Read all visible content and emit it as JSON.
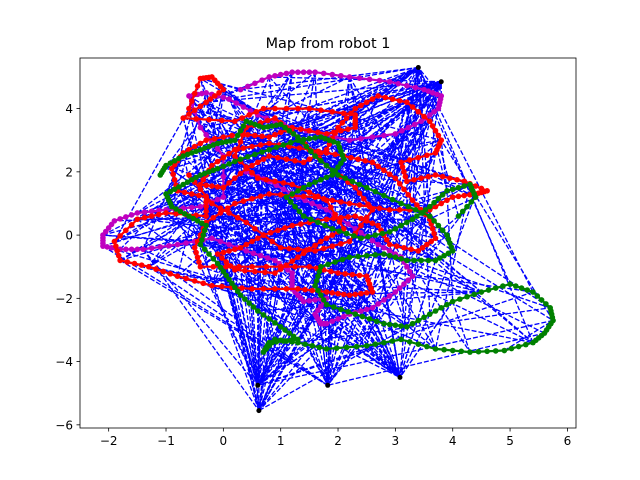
{
  "chart_data": {
    "type": "scatter",
    "title": "Map from robot 1",
    "xlabel": "",
    "ylabel": "",
    "xlim": [
      -2.5,
      6.15
    ],
    "ylim": [
      -6.1,
      5.6
    ],
    "xticks": [
      -2,
      -1,
      0,
      1,
      2,
      3,
      4,
      5,
      6
    ],
    "yticks": [
      -6,
      -4,
      -2,
      0,
      2,
      4
    ],
    "grid": false,
    "legend": "none",
    "colors": {
      "links": "#0000ff",
      "robot_red": "#ff0000",
      "robot_magenta": "#bf00bf",
      "robot_green": "#008000",
      "landmarks": "#000000"
    },
    "landmarks": [
      {
        "x": 3.4,
        "y": 5.3
      },
      {
        "x": 3.8,
        "y": 4.85
      },
      {
        "x": 0.6,
        "y": -4.75
      },
      {
        "x": 0.62,
        "y": -5.55
      },
      {
        "x": 1.82,
        "y": -4.75
      },
      {
        "x": 3.08,
        "y": -4.5
      }
    ],
    "series": [
      {
        "color": "red",
        "points": [
          [
            -0.6,
            4.0
          ],
          [
            -0.4,
            4.95
          ],
          [
            -0.2,
            5.0
          ],
          [
            0.0,
            4.6
          ],
          [
            -0.3,
            4.2
          ],
          [
            -0.7,
            3.7
          ],
          [
            0.2,
            3.6
          ],
          [
            0.7,
            4.0
          ],
          [
            1.5,
            4.0
          ],
          [
            2.3,
            3.8
          ],
          [
            2.3,
            3.4
          ],
          [
            1.8,
            3.2
          ],
          [
            1.2,
            3.4
          ],
          [
            0.8,
            3.1
          ],
          [
            0.3,
            3.2
          ],
          [
            -0.3,
            3.0
          ],
          [
            -0.7,
            2.6
          ],
          [
            -0.9,
            2.1
          ],
          [
            -0.8,
            1.4
          ],
          [
            -0.3,
            1.2
          ],
          [
            -0.3,
            0.6
          ],
          [
            -1.0,
            0.7
          ],
          [
            -1.5,
            0.5
          ],
          [
            -1.9,
            -0.2
          ],
          [
            -1.8,
            -0.8
          ],
          [
            -1.3,
            -1.0
          ],
          [
            -0.8,
            -1.3
          ],
          [
            -0.2,
            -1.6
          ],
          [
            0.5,
            -1.7
          ],
          [
            1.3,
            -1.7
          ],
          [
            1.8,
            -1.8
          ],
          [
            2.2,
            -1.9
          ],
          [
            2.6,
            -1.8
          ],
          [
            2.5,
            -1.3
          ],
          [
            2.0,
            -1.2
          ],
          [
            1.5,
            -1.0
          ],
          [
            0.5,
            -1.0
          ],
          [
            -0.4,
            -1.0
          ],
          [
            -0.5,
            -0.4
          ],
          [
            -0.3,
            0.4
          ],
          [
            0.2,
            1.0
          ],
          [
            0.8,
            1.3
          ],
          [
            1.6,
            1.2
          ],
          [
            2.2,
            1.0
          ],
          [
            2.9,
            0.8
          ],
          [
            3.6,
            0.8
          ],
          [
            4.0,
            1.2
          ],
          [
            4.4,
            1.3
          ],
          [
            4.6,
            1.4
          ],
          [
            4.2,
            1.7
          ],
          [
            3.7,
            1.9
          ],
          [
            3.2,
            1.7
          ],
          [
            3.1,
            2.3
          ],
          [
            3.7,
            2.6
          ],
          [
            3.8,
            3.0
          ],
          [
            3.6,
            3.6
          ],
          [
            3.2,
            4.2
          ],
          [
            2.7,
            4.4
          ],
          [
            2.3,
            4.0
          ],
          [
            2.0,
            3.4
          ],
          [
            1.8,
            2.7
          ],
          [
            1.4,
            2.3
          ],
          [
            0.8,
            2.5
          ],
          [
            0.4,
            2.1
          ],
          [
            0.0,
            1.5
          ],
          [
            -0.4,
            1.6
          ],
          [
            -0.2,
            2.2
          ],
          [
            0.2,
            2.7
          ],
          [
            0.8,
            2.9
          ],
          [
            1.5,
            2.7
          ],
          [
            2.1,
            2.5
          ],
          [
            2.6,
            2.3
          ],
          [
            3.0,
            1.8
          ],
          [
            3.3,
            1.1
          ],
          [
            3.6,
            0.5
          ],
          [
            3.7,
            -0.1
          ],
          [
            3.4,
            -0.5
          ],
          [
            2.9,
            -0.3
          ],
          [
            2.7,
            0.3
          ],
          [
            2.3,
            0.6
          ],
          [
            1.8,
            0.5
          ],
          [
            1.2,
            0.3
          ],
          [
            0.7,
            0.0
          ],
          [
            0.3,
            -0.4
          ],
          [
            -0.1,
            -0.6
          ],
          [
            0.2,
            -1.1
          ],
          [
            0.9,
            -1.2
          ],
          [
            1.3,
            -0.7
          ],
          [
            1.7,
            -0.2
          ],
          [
            2.1,
            0.2
          ],
          [
            1.8,
            1.1
          ],
          [
            1.2,
            1.6
          ],
          [
            0.6,
            1.8
          ],
          [
            0.2,
            2.5
          ],
          [
            0.4,
            3.4
          ],
          [
            0.9,
            3.7
          ],
          [
            1.3,
            3.1
          ],
          [
            1.8,
            2.2
          ],
          [
            2.3,
            1.5
          ],
          [
            2.6,
            0.8
          ],
          [
            2.2,
            -0.2
          ],
          [
            1.6,
            -0.5
          ],
          [
            1.0,
            -0.4
          ],
          [
            0.4,
            0.4
          ],
          [
            -0.2,
            1.0
          ],
          [
            -0.6,
            1.9
          ]
        ]
      },
      {
        "color": "magenta",
        "points": [
          [
            0.3,
            4.6
          ],
          [
            0.8,
            5.0
          ],
          [
            1.2,
            5.15
          ],
          [
            1.6,
            5.15
          ],
          [
            2.2,
            5.0
          ],
          [
            2.9,
            4.85
          ],
          [
            3.5,
            4.6
          ],
          [
            3.8,
            4.4
          ],
          [
            3.75,
            4.0
          ],
          [
            3.45,
            3.6
          ],
          [
            3.0,
            3.2
          ],
          [
            2.2,
            3.0
          ],
          [
            1.2,
            3.4
          ],
          [
            0.6,
            3.8
          ],
          [
            0.1,
            4.3
          ],
          [
            -0.3,
            4.5
          ],
          [
            -0.6,
            4.4
          ],
          [
            -0.4,
            3.4
          ],
          [
            0.0,
            2.5
          ],
          [
            0.0,
            1.2
          ],
          [
            -0.4,
            0.9
          ],
          [
            -1.0,
            0.8
          ],
          [
            -1.5,
            0.7
          ],
          [
            -1.9,
            0.45
          ],
          [
            -2.1,
            0.0
          ],
          [
            -2.1,
            -0.35
          ],
          [
            -1.8,
            -0.45
          ],
          [
            -1.4,
            -0.45
          ],
          [
            -0.8,
            -0.3
          ],
          [
            -0.2,
            -0.1
          ],
          [
            0.4,
            -0.5
          ],
          [
            0.9,
            -0.8
          ],
          [
            1.2,
            -1.2
          ],
          [
            1.2,
            -1.7
          ],
          [
            1.4,
            -2.1
          ],
          [
            1.8,
            -2.0
          ],
          [
            1.6,
            -2.5
          ],
          [
            1.7,
            -2.8
          ],
          [
            1.8,
            -2.8
          ],
          [
            2.2,
            -2.5
          ],
          [
            2.6,
            -2.3
          ],
          [
            3.0,
            -1.8
          ],
          [
            3.3,
            -1.3
          ],
          [
            3.1,
            -0.7
          ],
          [
            2.7,
            -0.3
          ],
          [
            2.3,
            0.2
          ],
          [
            1.8,
            0.8
          ],
          [
            1.3,
            1.2
          ],
          [
            0.8,
            1.7
          ],
          [
            0.4,
            2.0
          ]
        ]
      },
      {
        "color": "green",
        "points": [
          [
            -1.1,
            1.9
          ],
          [
            -1.0,
            2.2
          ],
          [
            -0.7,
            2.5
          ],
          [
            -0.4,
            2.7
          ],
          [
            -0.1,
            2.9
          ],
          [
            0.2,
            3.0
          ],
          [
            0.4,
            3.6
          ],
          [
            0.7,
            3.4
          ],
          [
            1.0,
            3.5
          ],
          [
            1.3,
            3.1
          ],
          [
            1.6,
            2.5
          ],
          [
            2.0,
            1.9
          ],
          [
            2.5,
            1.5
          ],
          [
            3.1,
            1.0
          ],
          [
            3.6,
            0.6
          ],
          [
            3.9,
            0.0
          ],
          [
            4.0,
            -0.5
          ],
          [
            3.7,
            -0.8
          ],
          [
            3.2,
            -0.8
          ],
          [
            2.8,
            -0.6
          ],
          [
            2.2,
            -0.7
          ],
          [
            1.7,
            -1.0
          ],
          [
            1.6,
            -1.6
          ],
          [
            1.8,
            -2.2
          ],
          [
            2.3,
            -2.5
          ],
          [
            2.8,
            -2.8
          ],
          [
            3.2,
            -2.9
          ],
          [
            3.6,
            -2.5
          ],
          [
            4.0,
            -2.1
          ],
          [
            4.5,
            -1.8
          ],
          [
            5.0,
            -1.55
          ],
          [
            5.4,
            -1.8
          ],
          [
            5.7,
            -2.3
          ],
          [
            5.75,
            -2.7
          ],
          [
            5.6,
            -3.1
          ],
          [
            5.4,
            -3.4
          ],
          [
            4.9,
            -3.65
          ],
          [
            4.3,
            -3.7
          ],
          [
            3.7,
            -3.6
          ],
          [
            3.1,
            -3.3
          ],
          [
            2.5,
            -3.5
          ],
          [
            1.8,
            -3.6
          ],
          [
            1.3,
            -3.4
          ],
          [
            0.9,
            -3.3
          ],
          [
            0.7,
            -3.7
          ],
          [
            0.8,
            -3.4
          ],
          [
            1.3,
            -3.3
          ],
          [
            1.0,
            -2.9
          ],
          [
            0.6,
            -2.4
          ],
          [
            0.3,
            -1.9
          ],
          [
            0.1,
            -1.4
          ],
          [
            -0.1,
            -0.9
          ],
          [
            -0.4,
            -0.3
          ],
          [
            -0.3,
            0.3
          ],
          [
            -0.6,
            0.6
          ],
          [
            -0.9,
            0.9
          ],
          [
            -1.0,
            1.3
          ],
          [
            -0.7,
            1.6
          ],
          [
            -0.4,
            1.9
          ],
          [
            -0.1,
            2.1
          ],
          [
            0.3,
            2.4
          ],
          [
            0.8,
            2.7
          ],
          [
            1.3,
            3.0
          ],
          [
            1.7,
            3.1
          ],
          [
            2.0,
            2.9
          ],
          [
            2.1,
            2.4
          ],
          [
            1.9,
            1.9
          ],
          [
            1.5,
            1.6
          ],
          [
            1.1,
            1.2
          ],
          [
            1.4,
            0.6
          ],
          [
            1.9,
            0.2
          ],
          [
            2.4,
            -0.1
          ],
          [
            2.9,
            0.1
          ],
          [
            3.3,
            0.5
          ],
          [
            3.6,
            0.9
          ],
          [
            3.9,
            1.4
          ],
          [
            4.3,
            1.6
          ],
          [
            4.4,
            1.2
          ],
          [
            4.1,
            0.6
          ]
        ]
      }
    ]
  }
}
